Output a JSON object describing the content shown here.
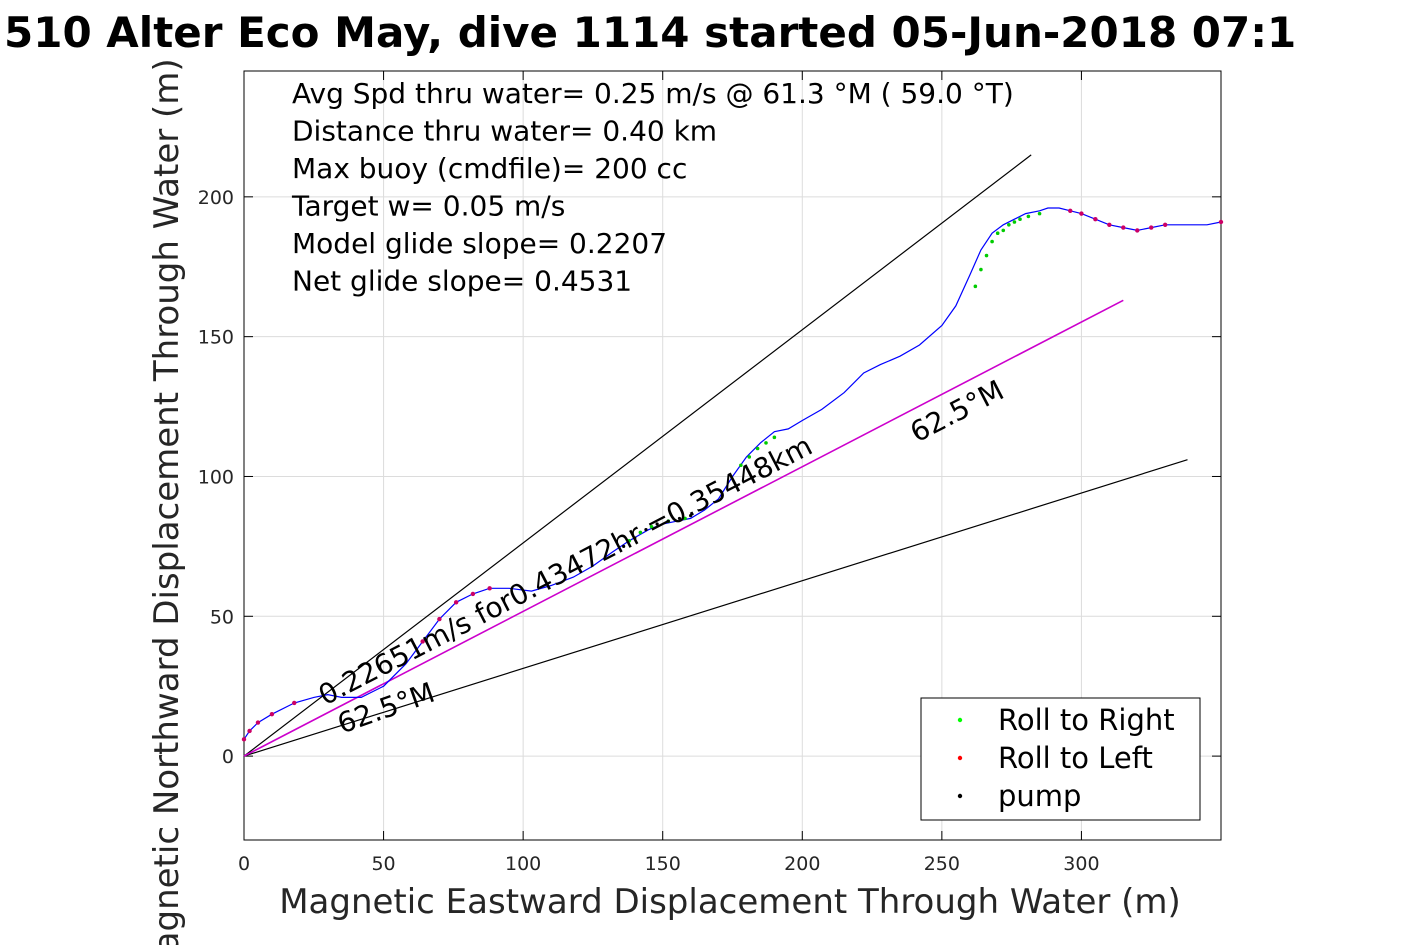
{
  "chart_data": {
    "type": "line",
    "title": "510 Alter Eco May, dive 1114 started 05-Jun-2018 07:1",
    "xlabel": "Magnetic Eastward Displacement Through Water (m)",
    "ylabel": "Magnetic Northward Displacement Through Water (m)",
    "xlim": [
      0,
      350
    ],
    "ylim": [
      -30,
      245
    ],
    "xticks": [
      0,
      50,
      100,
      150,
      200,
      250,
      300
    ],
    "yticks": [
      0,
      50,
      100,
      150,
      200
    ],
    "grid": true,
    "legend_position": "bottom-right",
    "info_lines": [
      "Avg Spd thru water=  0.25 m/s @  61.3 °M ( 59.0 °T)",
      "Distance thru water=  0.40 km",
      "Max buoy (cmdfile)= 200 cc",
      "Target w= 0.05 m/s",
      "Model glide slope= 0.2207",
      "Net glide slope= 0.4531"
    ],
    "annotations": {
      "net": "0.22651m/s for0.43472hr =0.35448km",
      "heading_lower": "62.5°M",
      "heading_upper": "62.5°M"
    },
    "legend": [
      {
        "label": "Roll to Right",
        "color": "#00ff00"
      },
      {
        "label": "Roll to Left",
        "color": "#ff0000"
      },
      {
        "label": "pump",
        "color": "#000000"
      }
    ],
    "colors": {
      "track": "#0000ff",
      "heading": "#cc00cc",
      "cone": "#000000",
      "track_points": "#cc0066"
    },
    "cone_lines": [
      {
        "x": [
          0,
          282
        ],
        "y": [
          0,
          215
        ]
      },
      {
        "x": [
          0,
          338
        ],
        "y": [
          0,
          106
        ]
      }
    ],
    "heading_line": {
      "x": [
        0,
        315
      ],
      "y": [
        0,
        163
      ]
    },
    "track": {
      "x": [
        0,
        2,
        5,
        10,
        18,
        25,
        30,
        35,
        42,
        50,
        58,
        64,
        70,
        76,
        82,
        88,
        95,
        103,
        110,
        118,
        125,
        132,
        138,
        145,
        150,
        155,
        160,
        165,
        170,
        175,
        180,
        185,
        190,
        195,
        200,
        207,
        215,
        222,
        228,
        235,
        242,
        250,
        255,
        260,
        264,
        268,
        272,
        276,
        280,
        285,
        288,
        292,
        296,
        300,
        305,
        310,
        315,
        320,
        325,
        330,
        335,
        340,
        345,
        350
      ],
      "y": [
        6,
        9,
        12,
        15,
        19,
        21,
        22,
        21,
        21,
        25,
        33,
        41,
        49,
        55,
        58,
        60,
        60,
        59,
        61,
        64,
        68,
        73,
        77,
        81,
        83,
        84,
        85,
        88,
        92,
        100,
        107,
        112,
        116,
        117,
        120,
        124,
        130,
        137,
        140,
        143,
        147,
        154,
        161,
        172,
        181,
        187,
        190,
        192,
        194,
        195,
        196,
        196,
        195,
        194,
        192,
        190,
        189,
        188,
        189,
        190,
        190,
        190,
        190,
        191
      ]
    },
    "roll_right_points": {
      "x": [
        138,
        142,
        146,
        152,
        158,
        178,
        181,
        184,
        187,
        190,
        262,
        264,
        266,
        268,
        270,
        272,
        274,
        276,
        278,
        281,
        285
      ],
      "y": [
        77,
        80,
        82,
        84,
        85,
        104,
        107,
        110,
        112,
        114,
        168,
        174,
        179,
        184,
        187,
        188,
        190,
        191,
        192,
        193,
        194
      ]
    },
    "pump_points": {
      "x": [
        136,
        140,
        144,
        148,
        152,
        156,
        160
      ],
      "y": [
        75,
        78,
        81,
        83,
        84,
        85,
        86
      ]
    }
  }
}
